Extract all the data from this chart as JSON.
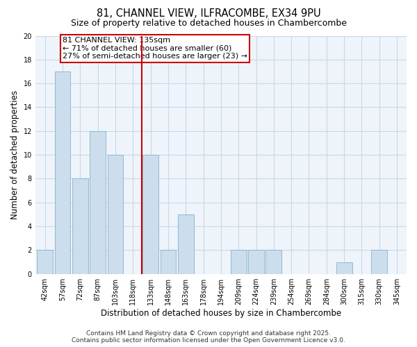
{
  "title1": "81, CHANNEL VIEW, ILFRACOMBE, EX34 9PU",
  "title2": "Size of property relative to detached houses in Chambercombe",
  "xlabel": "Distribution of detached houses by size in Chambercombe",
  "ylabel": "Number of detached properties",
  "categories": [
    "42sqm",
    "57sqm",
    "72sqm",
    "87sqm",
    "103sqm",
    "118sqm",
    "133sqm",
    "148sqm",
    "163sqm",
    "178sqm",
    "194sqm",
    "209sqm",
    "224sqm",
    "239sqm",
    "254sqm",
    "269sqm",
    "284sqm",
    "300sqm",
    "315sqm",
    "330sqm",
    "345sqm"
  ],
  "values": [
    2,
    17,
    8,
    12,
    10,
    0,
    10,
    2,
    5,
    0,
    0,
    2,
    2,
    2,
    0,
    0,
    0,
    1,
    0,
    2,
    0
  ],
  "bar_color": "#ccdded",
  "bar_edge_color": "#90b8d0",
  "vline_x": 5.5,
  "vline_color": "#cc0000",
  "annotation_line1": "81 CHANNEL VIEW: 135sqm",
  "annotation_line2": "← 71% of detached houses are smaller (60)",
  "annotation_line3": "27% of semi-detached houses are larger (23) →",
  "annotation_box_color": "#ffffff",
  "annotation_box_edge": "#cc0000",
  "ylim": [
    0,
    20
  ],
  "yticks": [
    0,
    2,
    4,
    6,
    8,
    10,
    12,
    14,
    16,
    18,
    20
  ],
  "bg_color": "#eef4fa",
  "grid_color": "#c8d8e8",
  "footer1": "Contains HM Land Registry data © Crown copyright and database right 2025.",
  "footer2": "Contains public sector information licensed under the Open Government Licence v3.0.",
  "title_fontsize": 10.5,
  "subtitle_fontsize": 9,
  "axis_label_fontsize": 8.5,
  "tick_fontsize": 7,
  "annotation_fontsize": 8,
  "footer_fontsize": 6.5
}
